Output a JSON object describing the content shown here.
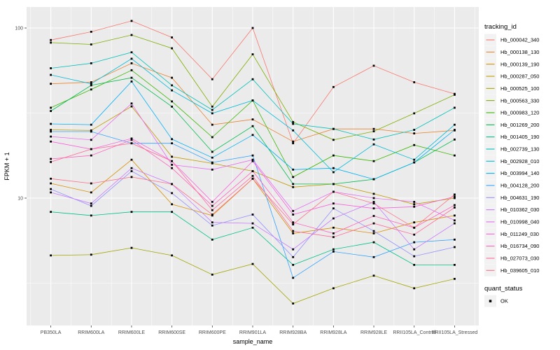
{
  "figure": {
    "panel": {
      "bg": "#EBEBEB",
      "grid": "#FFFFFF",
      "key_bg": "#F2F2F2",
      "tick_label_color": "#4D4D4D",
      "axis_title_color": "#000000",
      "tick_mark_color": "#333333"
    },
    "legend": {
      "series_title": "tracking_id",
      "status_title": "quant_status",
      "status_items": [
        {
          "label": "OK",
          "shape": "black-square",
          "color": "#000000"
        }
      ]
    }
  },
  "chart_data": {
    "type": "line",
    "title": "",
    "xlabel": "sample_name",
    "ylabel": "FPKM + 1",
    "y_scale": "log10",
    "ylim": [
      1.78,
      133
    ],
    "y_ticks": [
      100,
      10
    ],
    "y_minor_ticks": [
      31.623,
      3.1623
    ],
    "grid": true,
    "legend_position": "right",
    "point": {
      "shape": "square",
      "color": "#000000",
      "size": 2.8
    },
    "categories": [
      "PB350LA",
      "RRIM600LA",
      "RRIM600LE",
      "RRIM600SE",
      "RRIM600PE",
      "RRIM901LA",
      "RRIM928BA",
      "RRIM928LA",
      "RRIM928LE",
      "RRII105LA_Control",
      "RRII105LA_Stressed"
    ],
    "series": [
      {
        "name": "Hb_000042_340",
        "color": "#F8766D",
        "values": [
          85,
          95,
          110,
          88,
          50,
          100,
          21,
          45,
          60,
          48,
          41
        ]
      },
      {
        "name": "Hb_000138_130",
        "color": "#EA8331",
        "values": [
          47,
          48,
          62,
          51,
          27,
          29,
          21.5,
          25.5,
          25.5,
          24,
          25
        ]
      },
      {
        "name": "Hb_000139_190",
        "color": "#D89000",
        "values": [
          12.2,
          10.8,
          16.8,
          9.2,
          7.9,
          13,
          6.2,
          6.7,
          6.2,
          7.2,
          7.9
        ]
      },
      {
        "name": "Hb_000287_050",
        "color": "#C09B00",
        "values": [
          25.2,
          25,
          34.6,
          17.5,
          16,
          14.4,
          11.6,
          12.1,
          10.6,
          9.2,
          10
        ]
      },
      {
        "name": "Hb_000525_100",
        "color": "#A3A500",
        "values": [
          4.6,
          4.65,
          5.1,
          4.6,
          3.55,
          4.1,
          2.4,
          2.95,
          3.5,
          2.95,
          3.35
        ]
      },
      {
        "name": "Hb_000563_330",
        "color": "#7CAE00",
        "values": [
          82,
          80,
          91,
          76,
          34.5,
          70,
          28,
          22,
          24.7,
          31.5,
          40.5
        ]
      },
      {
        "name": "Hb_000983_120",
        "color": "#39B600",
        "values": [
          34,
          43.5,
          56.5,
          37,
          22.8,
          37.5,
          13.3,
          17.8,
          16.5,
          20.5,
          17.8
        ]
      },
      {
        "name": "Hb_001269_200",
        "color": "#00BB4E",
        "values": [
          32.5,
          46,
          51,
          34.5,
          18.7,
          26.5,
          12.1,
          12.1,
          12.9,
          16.2,
          22.1
        ]
      },
      {
        "name": "Hb_001405_190",
        "color": "#00C087",
        "values": [
          8.3,
          7.9,
          8.3,
          8.3,
          5.7,
          6.7,
          4.05,
          5.0,
          5.5,
          4.05,
          4.05
        ]
      },
      {
        "name": "Hb_002739_130",
        "color": "#00C0B8",
        "values": [
          58,
          62,
          72,
          46,
          33,
          50,
          27.3,
          25.5,
          22.1,
          25.2,
          34
        ]
      },
      {
        "name": "Hb_002928_010",
        "color": "#00BCD8",
        "values": [
          53,
          47,
          66,
          43,
          31.5,
          37.5,
          25,
          14.2,
          20.7,
          16.8,
          27
        ]
      },
      {
        "name": "Hb_003994_140",
        "color": "#00B0F6",
        "values": [
          27.3,
          27,
          48.5,
          22.2,
          17.3,
          23.5,
          14.7,
          15,
          12.9,
          16.2,
          25.2
        ]
      },
      {
        "name": "Hb_004128_200",
        "color": "#35A2FF",
        "values": [
          24.6,
          24.6,
          21,
          21,
          16.2,
          17.8,
          3.4,
          4.85,
          4.5,
          5.5,
          5.7
        ]
      },
      {
        "name": "Hb_004631_190",
        "color": "#9590FF",
        "values": [
          11.3,
          9.0,
          14.4,
          10.7,
          6.9,
          8.0,
          4.5,
          8.7,
          6.4,
          4.55,
          5.15
        ]
      },
      {
        "name": "Hb_010362_030",
        "color": "#C77CFF",
        "values": [
          10.8,
          9.3,
          15,
          12.1,
          7.2,
          7.1,
          5.0,
          7.6,
          9.5,
          5.0,
          7.1
        ]
      },
      {
        "name": "Hb_010998_040",
        "color": "#E76BF3",
        "values": [
          23,
          22,
          36,
          15.7,
          14.7,
          16.8,
          8.4,
          10.9,
          10.0,
          9.5,
          7.4
        ]
      },
      {
        "name": "Hb_011249_030",
        "color": "#FA62DB",
        "values": [
          21.5,
          19.4,
          22.4,
          16.5,
          9.5,
          16.5,
          8.0,
          9.3,
          8.7,
          8.9,
          10.2
        ]
      },
      {
        "name": "Hb_016734_090",
        "color": "#FF62BC",
        "values": [
          17,
          17.8,
          22,
          15,
          9.0,
          14.4,
          7.2,
          6.2,
          7.85,
          6.7,
          9.1
        ]
      },
      {
        "name": "Hb_027073_030",
        "color": "#FF6A98",
        "values": [
          16.3,
          19.4,
          21,
          16.5,
          8.5,
          13.5,
          6.4,
          5.9,
          7.1,
          6.1,
          8.8
        ]
      },
      {
        "name": "Hb_039605_010",
        "color": "#FD6F88",
        "values": [
          13,
          12.2,
          13.3,
          12.1,
          8.0,
          13.0,
          7.0,
          10.9,
          9.3,
          6.7,
          10.5
        ]
      }
    ]
  }
}
